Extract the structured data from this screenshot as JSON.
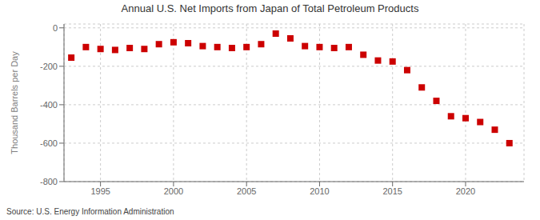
{
  "chart_data": {
    "type": "scatter",
    "title": "Annual U.S. Net Imports from Japan of Total Petroleum Products",
    "ylabel": "Thousand Barrels per Day",
    "annotations": [
      "Source: U.S. Energy Information Administration"
    ],
    "x": [
      1993,
      1994,
      1995,
      1996,
      1997,
      1998,
      1999,
      2000,
      2001,
      2002,
      2003,
      2004,
      2005,
      2006,
      2007,
      2008,
      2009,
      2010,
      2011,
      2012,
      2013,
      2014,
      2015,
      2016,
      2017,
      2018,
      2019,
      2020,
      2021,
      2022,
      2023
    ],
    "values": [
      -155,
      -100,
      -110,
      -115,
      -105,
      -110,
      -85,
      -75,
      -80,
      -95,
      -100,
      -105,
      -100,
      -85,
      -30,
      -55,
      -95,
      -100,
      -105,
      -100,
      -140,
      -170,
      -175,
      -220,
      -310,
      -380,
      -460,
      -470,
      -490,
      -530,
      -600
    ],
    "color": "#cc0000",
    "marker": "square",
    "xlim": [
      1992.5,
      2024
    ],
    "xticks": [
      1995,
      2000,
      2005,
      2010,
      2015,
      2020
    ],
    "ylim": [
      -800,
      20
    ],
    "yticks": [
      0,
      -200,
      -400,
      -600,
      -800
    ],
    "grid": true
  }
}
